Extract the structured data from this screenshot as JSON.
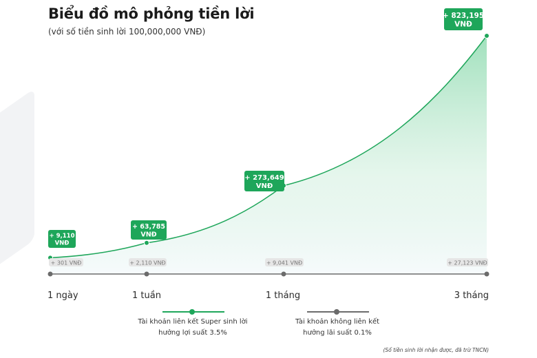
{
  "header": {
    "title": "Biểu đồ mô phỏng tiền lời",
    "subtitle": "(với số tiền sinh lời 100,000,000 VNĐ)"
  },
  "chart_data": {
    "type": "area",
    "x": [
      "1 ngày",
      "1 tuần",
      "1 tháng",
      "3 tháng"
    ],
    "series": [
      {
        "name": "Tài khoản liên kết Super sinh lời hưởng lợi suất 3.5%",
        "color": "#1ea65a",
        "values": [
          9110,
          63785,
          273649,
          823195
        ],
        "labels": [
          [
            "+ 9,110",
            "VNĐ"
          ],
          [
            "+ 63,785",
            "VNĐ"
          ],
          [
            "+ 273,649",
            "VNĐ"
          ],
          [
            "+ 823,195",
            "VNĐ"
          ]
        ]
      },
      {
        "name": "Tài khoản không liên kết hưởng lãi suất 0.1%",
        "color": "#6b6b6b",
        "values": [
          301,
          2110,
          9041,
          27123
        ],
        "labels": [
          "+ 301 VNĐ",
          "+ 2,110 VNĐ",
          "+ 9,041 VNĐ",
          "+ 27,123 VNĐ"
        ]
      }
    ],
    "title": "Biểu đồ mô phỏng tiền lời",
    "subtitle": "(với số tiền sinh lời 100,000,000 VNĐ)"
  },
  "legend": {
    "super_line1": "Tài khoản liên kết Super sinh lời",
    "super_line2": "hưởng lợi suất 3.5%",
    "normal_line1": "Tài khoản không liên kết",
    "normal_line2": "hưởng lãi suất 0.1%"
  },
  "footnote": "(Số tiền sinh lời nhận được, đã trừ TNCN)",
  "colors": {
    "green": "#1ea65a",
    "gray": "#6b6b6b",
    "gray_badge": "#e6e6e6"
  }
}
